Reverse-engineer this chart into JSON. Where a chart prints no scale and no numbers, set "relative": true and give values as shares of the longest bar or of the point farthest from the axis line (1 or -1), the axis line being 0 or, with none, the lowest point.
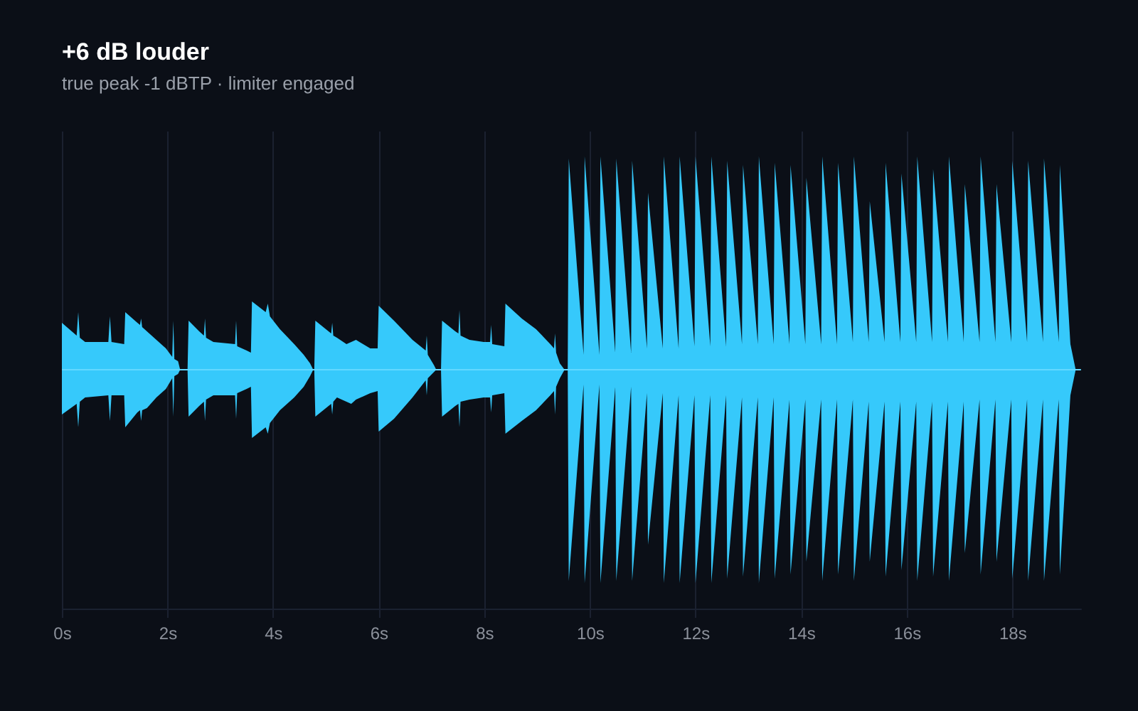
{
  "chart_data": {
    "type": "area",
    "title": "+6 dB louder",
    "subtitle": "true peak -1 dBTP · limiter engaged",
    "relative": true,
    "grid": "x",
    "x": [
      0,
      0.28,
      0.31,
      0.34,
      0.44,
      0.88,
      0.91,
      0.94,
      1.18,
      1.2,
      1.43,
      1.48,
      1.5,
      1.52,
      1.61,
      1.79,
      1.97,
      2.09,
      2.11,
      2.13,
      2.2,
      2.24,
      2.38,
      2.4,
      2.6,
      2.69,
      2.71,
      2.73,
      2.87,
      3.28,
      3.3,
      3.32,
      3.5,
      3.58,
      3.6,
      3.86,
      3.9,
      3.94,
      4.13,
      4.4,
      4.58,
      4.7,
      4.76,
      4.78,
      4.8,
      5.1,
      5.12,
      5.14,
      5.21,
      5.39,
      5.48,
      5.57,
      5.84,
      5.98,
      6,
      6.29,
      6.64,
      6.89,
      6.91,
      6.93,
      7.05,
      7.09,
      7.18,
      7.2,
      7.45,
      7.51,
      7.53,
      7.55,
      7.72,
      7.99,
      8.11,
      8.13,
      8.15,
      8.38,
      8.4,
      8.71,
      8.98,
      9.25,
      9.32,
      9.34,
      9.36,
      9.43,
      9.52,
      9.58,
      9.6,
      9.88,
      9.9,
      10.18,
      10.2,
      10.48,
      10.5,
      10.78,
      10.8,
      11.08,
      11.1,
      11.38,
      11.4,
      11.68,
      11.7,
      11.98,
      12,
      12.28,
      12.3,
      12.58,
      12.6,
      12.88,
      12.9,
      13.18,
      13.2,
      13.48,
      13.5,
      13.78,
      13.8,
      14.08,
      14.1,
      14.38,
      14.4,
      14.68,
      14.7,
      14.98,
      15,
      15.28,
      15.3,
      15.58,
      15.6,
      15.88,
      15.9,
      16.18,
      16.2,
      16.48,
      16.5,
      16.78,
      16.8,
      17.08,
      17.1,
      17.38,
      17.4,
      17.68,
      17.7,
      17.98,
      18,
      18.28,
      18.3,
      18.58,
      18.6,
      18.88,
      18.9,
      19.1,
      19.2
    ],
    "series": [
      {
        "color": "#36c9fb",
        "values": [
          0.22,
          0.16,
          0.27,
          0.15,
          0.13,
          0.13,
          0.25,
          0.13,
          0.12,
          0.27,
          0.22,
          0.21,
          0.24,
          0.2,
          0.18,
          0.14,
          0.1,
          0.06,
          0.23,
          0.05,
          0.04,
          0,
          0,
          0.23,
          0.18,
          0.16,
          0.24,
          0.15,
          0.13,
          0.12,
          0.23,
          0.11,
          0.09,
          0.08,
          0.32,
          0.27,
          0.31,
          0.25,
          0.19,
          0.12,
          0.07,
          0.03,
          0,
          0,
          0.23,
          0.17,
          0.22,
          0.16,
          0.15,
          0.12,
          0.13,
          0.14,
          0.1,
          0.1,
          0.3,
          0.23,
          0.14,
          0.09,
          0.16,
          0.07,
          0.02,
          0,
          0,
          0.23,
          0.18,
          0.17,
          0.28,
          0.16,
          0.14,
          0.13,
          0.13,
          0.21,
          0.12,
          0.11,
          0.31,
          0.24,
          0.19,
          0.12,
          0.1,
          0.17,
          0.08,
          0.03,
          0,
          0,
          0.99,
          0.07,
          1,
          0.07,
          1,
          0.08,
          0.99,
          0.08,
          0.98,
          0.1,
          0.83,
          0.1,
          1,
          0.1,
          1,
          0.11,
          1,
          0.11,
          1,
          0.11,
          0.98,
          0.12,
          0.96,
          0.12,
          1,
          0.12,
          0.97,
          0.12,
          0.96,
          0.12,
          0.9,
          0.12,
          1,
          0.12,
          0.97,
          0.13,
          1,
          0.13,
          0.79,
          0.13,
          0.97,
          0.13,
          0.92,
          0.13,
          1,
          0.13,
          0.94,
          0.13,
          1,
          0.13,
          0.87,
          0.13,
          1,
          0.13,
          0.87,
          0.13,
          0.98,
          0.13,
          0.98,
          0.13,
          0.99,
          0.13,
          0.96,
          0.12,
          0
        ]
      },
      {
        "color": "#36c9fb",
        "values": [
          -0.21,
          -0.16,
          -0.27,
          -0.15,
          -0.13,
          -0.12,
          -0.24,
          -0.12,
          -0.12,
          -0.27,
          -0.2,
          -0.19,
          -0.24,
          -0.19,
          -0.18,
          -0.13,
          -0.09,
          -0.04,
          -0.22,
          -0.03,
          -0.02,
          0,
          0,
          -0.22,
          -0.17,
          -0.15,
          -0.24,
          -0.14,
          -0.12,
          -0.12,
          -0.23,
          -0.11,
          -0.09,
          -0.08,
          -0.32,
          -0.27,
          -0.3,
          -0.25,
          -0.19,
          -0.13,
          -0.08,
          -0.03,
          0,
          0,
          -0.22,
          -0.16,
          -0.21,
          -0.15,
          -0.13,
          -0.15,
          -0.16,
          -0.14,
          -0.11,
          -0.1,
          -0.29,
          -0.23,
          -0.13,
          -0.05,
          -0.12,
          -0.04,
          -0.01,
          0,
          0,
          -0.22,
          -0.17,
          -0.16,
          -0.27,
          -0.15,
          -0.14,
          -0.13,
          -0.13,
          -0.2,
          -0.12,
          -0.11,
          -0.3,
          -0.24,
          -0.19,
          -0.12,
          -0.1,
          -0.21,
          -0.08,
          -0.04,
          0,
          0,
          -0.99,
          -0.07,
          -1,
          -0.07,
          -1,
          -0.08,
          -0.99,
          -0.08,
          -0.99,
          -0.11,
          -0.82,
          -0.11,
          -1,
          -0.12,
          -1,
          -0.12,
          -1,
          -0.12,
          -1,
          -0.12,
          -0.98,
          -0.13,
          -0.97,
          -0.13,
          -1,
          -0.13,
          -0.98,
          -0.14,
          -0.96,
          -0.14,
          -0.9,
          -0.14,
          -0.99,
          -0.14,
          -0.96,
          -0.14,
          -0.99,
          -0.15,
          -0.9,
          -0.15,
          -0.97,
          -0.15,
          -0.94,
          -0.15,
          -0.99,
          -0.15,
          -0.97,
          -0.15,
          -0.99,
          -0.15,
          -0.86,
          -0.14,
          -0.96,
          -0.14,
          -0.9,
          -0.14,
          -0.98,
          -0.14,
          -0.99,
          -0.14,
          -0.99,
          -0.14,
          -0.96,
          -0.12,
          0
        ]
      }
    ],
    "xlim": [
      0,
      19.3
    ],
    "xticks": [
      {
        "value": 0,
        "label": "0s"
      },
      {
        "value": 2,
        "label": "2s"
      },
      {
        "value": 4,
        "label": "4s"
      },
      {
        "value": 6,
        "label": "6s"
      },
      {
        "value": 8,
        "label": "8s"
      },
      {
        "value": 10,
        "label": "10s"
      },
      {
        "value": 12,
        "label": "12s"
      },
      {
        "value": 14,
        "label": "14s"
      },
      {
        "value": 16,
        "label": "16s"
      },
      {
        "value": 18,
        "label": "18s"
      }
    ],
    "ref_lines": [
      {
        "axis": "y",
        "value": 0,
        "color": "#63d8ff"
      }
    ]
  }
}
